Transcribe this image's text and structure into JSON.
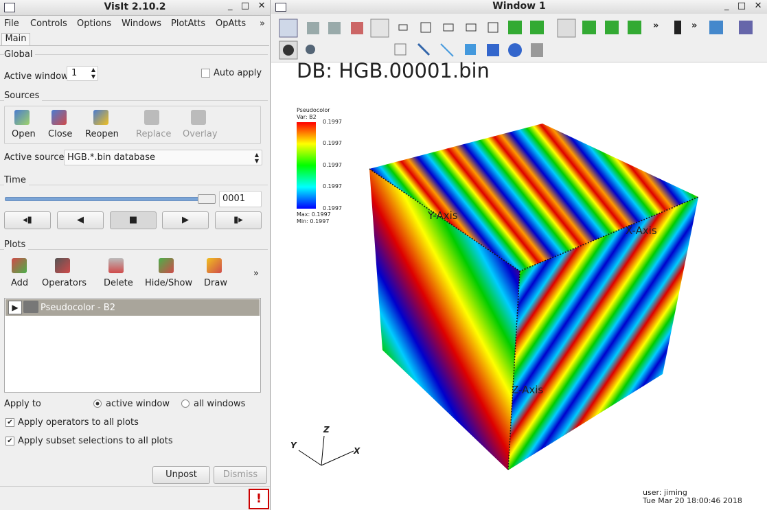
{
  "left_window": {
    "title": "VisIt 2.10.2",
    "menu": [
      "File",
      "Controls",
      "Options",
      "Windows",
      "PlotAtts",
      "OpAtts",
      "»"
    ],
    "tab": "Main",
    "global": {
      "title": "Global",
      "active_window_label": "Active window",
      "active_window_value": "1",
      "auto_apply": "Auto apply"
    },
    "sources": {
      "title": "Sources",
      "buttons": [
        "Open",
        "Close",
        "Reopen",
        "Replace",
        "Overlay"
      ],
      "active_source_label": "Active source",
      "active_source_value": "HGB.*.bin database"
    },
    "time": {
      "title": "Time",
      "frame": "0001"
    },
    "plots": {
      "title": "Plots",
      "buttons": [
        "Add",
        "Operators",
        "Delete",
        "Hide/Show",
        "Draw"
      ],
      "more": "»",
      "items": [
        "Pseudocolor - B2"
      ],
      "apply_to_label": "Apply to",
      "apply_options": [
        "active window",
        "all windows"
      ],
      "checkboxes": [
        "Apply operators to all plots",
        "Apply subset selections to all plots"
      ]
    },
    "footer_buttons": [
      "Unpost",
      "Dismiss"
    ]
  },
  "vis_window": {
    "title": "Window 1",
    "toolbar_more": [
      "»",
      "»"
    ],
    "db_label": "DB: HGB.00001.bin",
    "legend": {
      "title": "Pseudocolor",
      "var": "Var: B2",
      "ticks": [
        "0.1997",
        "0.1997",
        "0.1997",
        "0.1997",
        "0.1997"
      ],
      "max": "Max:  0.1997",
      "min": "Min:  0.1997"
    },
    "axis_titles": [
      "X-Axis",
      "Y-Axis",
      "Z-Axis"
    ],
    "triad": [
      "X",
      "Y",
      "Z"
    ],
    "user": "user: jiming",
    "date": "Tue Mar 20 18:00:46 2018"
  }
}
